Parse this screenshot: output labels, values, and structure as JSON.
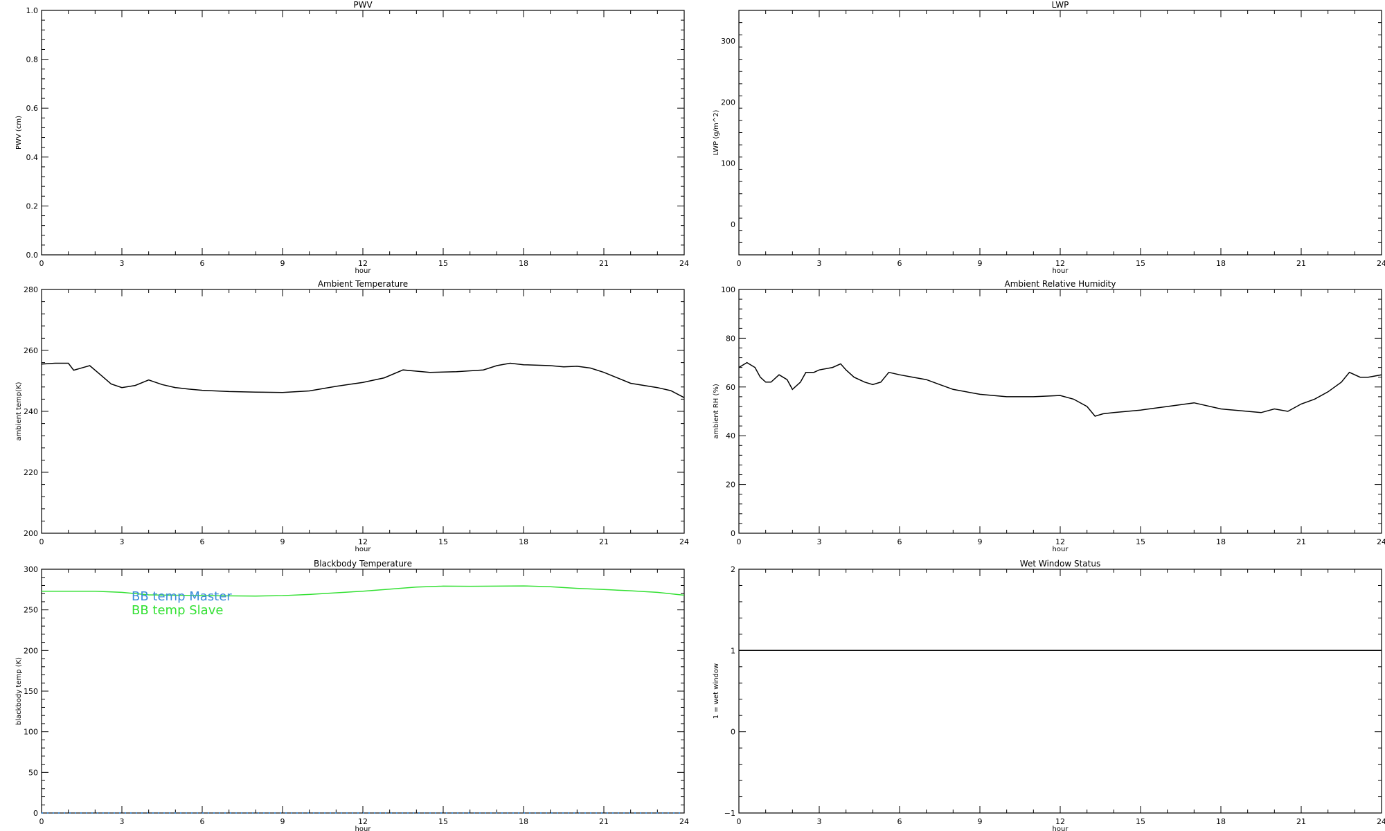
{
  "chart_data": [
    {
      "type": "line",
      "title": "PWV",
      "xlabel": "hour",
      "ylabel": "PWV (cm)",
      "xlim": [
        0,
        24
      ],
      "ylim": [
        0,
        1
      ],
      "xticks": [
        0,
        3,
        6,
        9,
        12,
        15,
        18,
        21,
        24
      ],
      "yticks": [
        0,
        0.2,
        0.4,
        0.6,
        0.8,
        1.0
      ],
      "ytick_labels": [
        "0.0",
        "0.2",
        "0.4",
        "0.6",
        "0.8",
        "1.0"
      ],
      "series": []
    },
    {
      "type": "line",
      "title": "LWP",
      "xlabel": "hour",
      "ylabel": "LWP (g/m^2)",
      "xlim": [
        0,
        24
      ],
      "ylim": [
        -50,
        350
      ],
      "xticks": [
        0,
        3,
        6,
        9,
        12,
        15,
        18,
        21,
        24
      ],
      "yticks": [
        0,
        100,
        200,
        300
      ],
      "ytick_labels": [
        "0",
        "100",
        "200",
        "300"
      ],
      "series": []
    },
    {
      "type": "line",
      "title": "Ambient Temperature",
      "xlabel": "hour",
      "ylabel": "ambient temp(K)",
      "xlim": [
        0,
        24
      ],
      "ylim": [
        200,
        280
      ],
      "xticks": [
        0,
        3,
        6,
        9,
        12,
        15,
        18,
        21,
        24
      ],
      "yticks": [
        200,
        220,
        240,
        260,
        280
      ],
      "ytick_labels": [
        "200",
        "220",
        "240",
        "260",
        "280"
      ],
      "series": [
        {
          "color": "#000000",
          "x": [
            0,
            0.5,
            1.0,
            1.2,
            1.6,
            1.8,
            2.2,
            2.6,
            3.0,
            3.5,
            4.0,
            4.5,
            5.0,
            5.5,
            6.0,
            7.0,
            8.0,
            9.0,
            10.0,
            11.0,
            12.0,
            12.8,
            13.5,
            14.5,
            15.5,
            16.5,
            17.0,
            17.5,
            18.0,
            19.0,
            19.5,
            20.0,
            20.5,
            21.0,
            21.5,
            22.0,
            23.0,
            23.5,
            24.0
          ],
          "y": [
            255.5,
            255.8,
            255.8,
            253.5,
            254.5,
            255.0,
            252.0,
            249.0,
            247.8,
            248.5,
            250.3,
            248.8,
            247.8,
            247.3,
            246.9,
            246.5,
            246.3,
            246.2,
            246.7,
            248.2,
            249.5,
            251.0,
            253.6,
            252.8,
            253.0,
            253.6,
            255.0,
            255.8,
            255.3,
            255.0,
            254.6,
            254.8,
            254.2,
            252.8,
            251.0,
            249.2,
            247.8,
            246.8,
            244.5
          ]
        }
      ]
    },
    {
      "type": "line",
      "title": "Ambient Relative Humidity",
      "xlabel": "hour",
      "ylabel": "ambient RH (%)",
      "xlim": [
        0,
        24
      ],
      "ylim": [
        0,
        100
      ],
      "xticks": [
        0,
        3,
        6,
        9,
        12,
        15,
        18,
        21,
        24
      ],
      "yticks": [
        0,
        20,
        40,
        60,
        80,
        100
      ],
      "ytick_labels": [
        "0",
        "20",
        "40",
        "60",
        "80",
        "100"
      ],
      "series": [
        {
          "color": "#000000",
          "x": [
            0,
            0.3,
            0.6,
            0.8,
            1.0,
            1.2,
            1.5,
            1.8,
            2.0,
            2.3,
            2.5,
            2.8,
            3.0,
            3.5,
            3.8,
            4.0,
            4.3,
            4.7,
            5.0,
            5.3,
            5.6,
            6.0,
            6.5,
            7.0,
            7.5,
            8.0,
            9.0,
            10.0,
            11.0,
            12.0,
            12.5,
            13.0,
            13.3,
            13.6,
            14.0,
            15.0,
            16.0,
            17.0,
            18.0,
            19.0,
            19.5,
            20.0,
            20.5,
            21.0,
            21.5,
            22.0,
            22.5,
            22.8,
            23.2,
            23.5,
            24.0
          ],
          "y": [
            68,
            70,
            68,
            64,
            62,
            62,
            65,
            63,
            59,
            62,
            66,
            66,
            67,
            68,
            69.5,
            67,
            64,
            62,
            61,
            62,
            66,
            65,
            64,
            63,
            61,
            59,
            57,
            56,
            56,
            56.5,
            55,
            52,
            48,
            49,
            49.5,
            50.5,
            52,
            53.5,
            51,
            50,
            49.5,
            51,
            50,
            53,
            55,
            58,
            62,
            66,
            64,
            64,
            65
          ]
        }
      ]
    },
    {
      "type": "line",
      "title": "Blackbody Temperature",
      "xlabel": "hour",
      "ylabel": "blackbody temp (K)",
      "xlim": [
        0,
        24
      ],
      "ylim": [
        0,
        300
      ],
      "xticks": [
        0,
        3,
        6,
        9,
        12,
        15,
        18,
        21,
        24
      ],
      "yticks": [
        0,
        50,
        100,
        150,
        200,
        250,
        300
      ],
      "ytick_labels": [
        "0",
        "50",
        "100",
        "150",
        "200",
        "250",
        "300"
      ],
      "legend_placement": "top-left",
      "series": [
        {
          "name": "BB temp Master",
          "color": "#3b8bd9",
          "x": [
            0,
            24
          ],
          "y": [
            0,
            0
          ]
        },
        {
          "name": "BB temp Slave",
          "color": "#33e033",
          "x": [
            0,
            2,
            3,
            4,
            6,
            8,
            9,
            10,
            12,
            13,
            14,
            15,
            16,
            18,
            19,
            20,
            21,
            22,
            23,
            24
          ],
          "y": [
            273,
            273,
            271.5,
            268.5,
            267.5,
            267,
            267.5,
            269,
            273,
            275.5,
            278,
            279.2,
            279,
            279.5,
            278.5,
            276.5,
            275,
            273.5,
            271.5,
            268
          ]
        }
      ]
    },
    {
      "type": "line",
      "title": "Wet Window Status",
      "xlabel": "hour",
      "ylabel": "1 = wet window",
      "xlim": [
        0,
        24
      ],
      "ylim": [
        -1,
        2
      ],
      "xticks": [
        0,
        3,
        6,
        9,
        12,
        15,
        18,
        21,
        24
      ],
      "yticks": [
        -1,
        0,
        1,
        2
      ],
      "ytick_labels": [
        "−1",
        "0",
        "1",
        "2"
      ],
      "series": [
        {
          "color": "#000000",
          "x": [
            0,
            24
          ],
          "y": [
            1,
            1
          ]
        }
      ]
    }
  ]
}
